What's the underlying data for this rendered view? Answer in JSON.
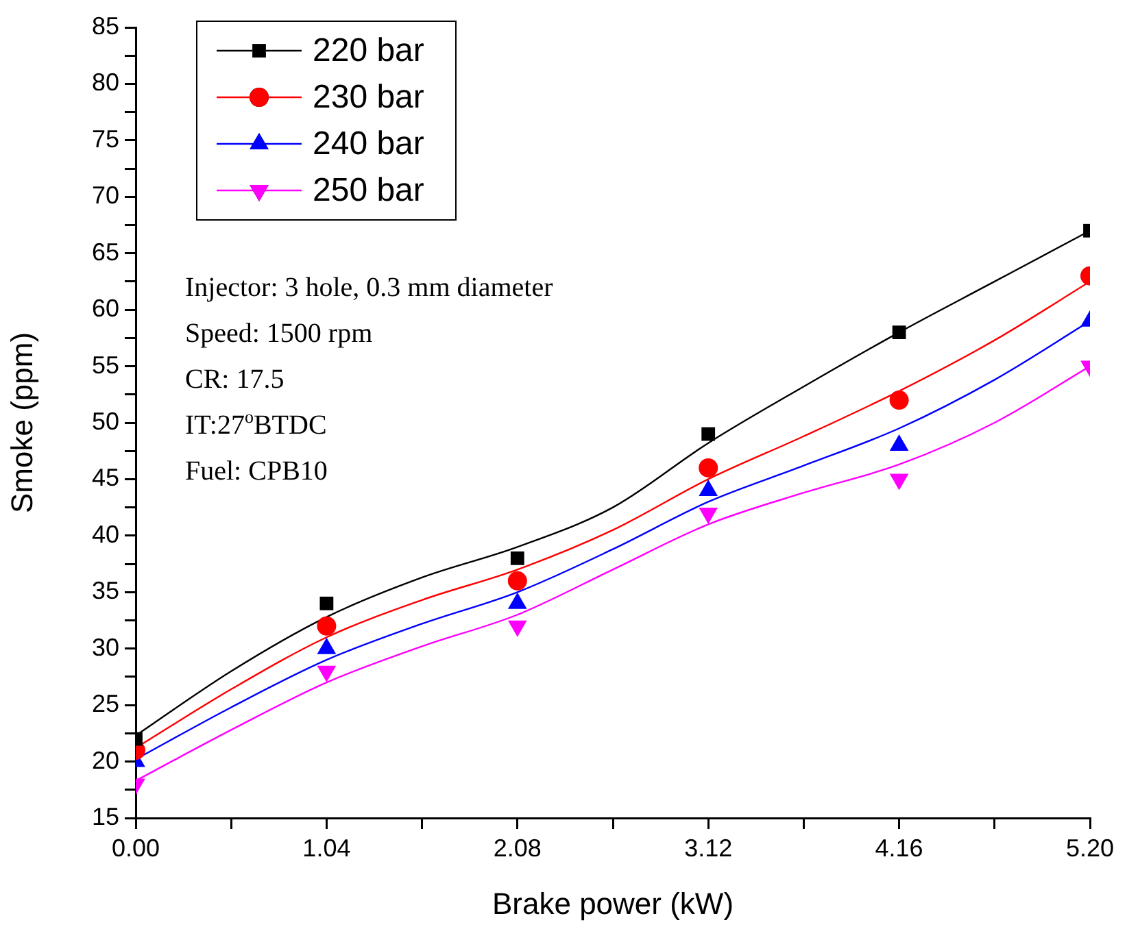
{
  "chart_data": {
    "type": "scatter",
    "xlabel": "Brake power (kW)",
    "ylabel": "Smoke (ppm)",
    "legend": "top left",
    "xlim": [
      0,
      5.2
    ],
    "ylim": [
      15,
      85
    ],
    "xticks": [
      {
        "value": 0,
        "label": "0.00"
      },
      {
        "value": 0.52,
        "label": null
      },
      1.04,
      {
        "value": 1.56,
        "label": null
      },
      2.08,
      {
        "value": 2.6,
        "label": null
      },
      3.12,
      {
        "value": 3.64,
        "label": null
      },
      4.16,
      {
        "value": 4.68,
        "label": null
      },
      {
        "value": 5.2,
        "label": "5.20"
      }
    ],
    "yticks": [
      15,
      {
        "value": 17.5,
        "label": null
      },
      20,
      {
        "value": 22.5,
        "label": null
      },
      25,
      {
        "value": 27.5,
        "label": null
      },
      30,
      {
        "value": 32.5,
        "label": null
      },
      35,
      {
        "value": 37.5,
        "label": null
      },
      40,
      {
        "value": 42.5,
        "label": null
      },
      45,
      {
        "value": 47.5,
        "label": null
      },
      50,
      {
        "value": 52.5,
        "label": null
      },
      55,
      {
        "value": 57.5,
        "label": null
      },
      60,
      {
        "value": 62.5,
        "label": null
      },
      65,
      {
        "value": 67.5,
        "label": null
      },
      70,
      {
        "value": 72.5,
        "label": null
      },
      75,
      {
        "value": 77.5,
        "label": null
      },
      80,
      {
        "value": 82.5,
        "label": null
      },
      85
    ],
    "x": [
      0,
      1.04,
      2.08,
      3.12,
      4.16,
      5.2
    ],
    "series": [
      {
        "name": "220 bar",
        "type": "scatter",
        "marker": "square",
        "color": "#000000",
        "values": [
          22,
          34,
          38,
          49,
          58,
          67
        ]
      },
      {
        "name": "230 bar",
        "type": "scatter",
        "marker": "circle",
        "color": "#ff0000",
        "values": [
          21,
          32,
          36,
          46,
          52,
          63
        ]
      },
      {
        "name": "240 bar",
        "type": "scatter",
        "marker": "triangle",
        "color": "#0000ff",
        "values": [
          20,
          30,
          34,
          44,
          48,
          59
        ]
      },
      {
        "name": "250 bar",
        "type": "scatter",
        "marker": "triangle-down",
        "color": "#ff00ff",
        "values": [
          18,
          28,
          32,
          42,
          45,
          55
        ]
      },
      {
        "type": "line",
        "marker": "none",
        "color": "#000000",
        "x": [
          0,
          0.52,
          1.04,
          1.56,
          2.08,
          2.6,
          3.12,
          3.64,
          4.16,
          4.68,
          5.2
        ],
        "values": [
          22.3,
          28,
          32.8,
          36.3,
          39,
          42.5,
          48.2,
          53.2,
          58,
          62.5,
          67
        ]
      },
      {
        "type": "line",
        "marker": "none",
        "color": "#ff0000",
        "x": [
          0,
          0.52,
          1.04,
          1.56,
          2.08,
          2.6,
          3.12,
          3.64,
          4.16,
          4.68,
          5.2
        ],
        "values": [
          21.2,
          26.4,
          31,
          34.3,
          37,
          40.5,
          45,
          48.8,
          52.8,
          57.3,
          62.5
        ]
      },
      {
        "type": "line",
        "marker": "none",
        "color": "#0000ff",
        "x": [
          0,
          0.52,
          1.04,
          1.56,
          2.08,
          2.6,
          3.12,
          3.64,
          4.16,
          4.68,
          5.2
        ],
        "values": [
          20.2,
          24.8,
          29,
          32.2,
          35,
          38.8,
          43,
          46.2,
          49.5,
          53.8,
          59
        ]
      },
      {
        "type": "line",
        "marker": "none",
        "color": "#ff00ff",
        "x": [
          0,
          0.52,
          1.04,
          1.56,
          2.08,
          2.6,
          3.12,
          3.64,
          4.16,
          4.68,
          5.2
        ],
        "values": [
          18.3,
          22.8,
          27,
          30.2,
          33,
          37,
          41,
          43.8,
          46.3,
          50,
          55
        ]
      }
    ],
    "annotations": [
      "Injector: 3 hole, 0.3 mm diameter",
      "Speed: 1500 rpm",
      "CR: 17.5",
      "IT:27$^{o}$BTDC",
      "Fuel: CPB10"
    ]
  }
}
